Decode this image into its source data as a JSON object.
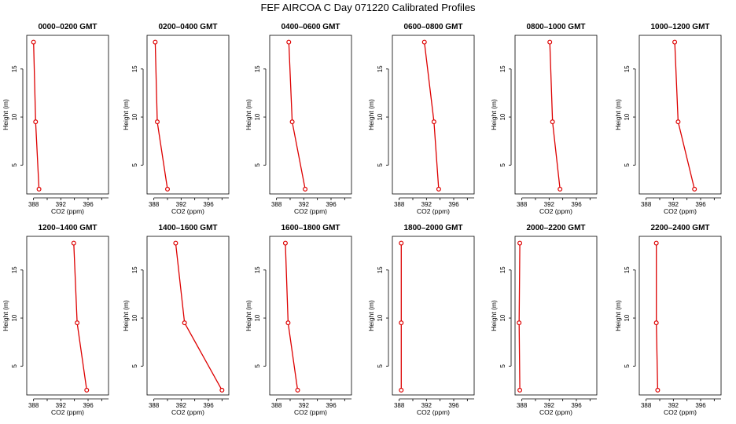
{
  "title": "FEF AIRCOA C  Day 071220  Calibrated Profiles",
  "chart_data": {
    "type": "line",
    "xlabel": "CO2 (ppm)",
    "ylabel": "Height (m)",
    "xlim": [
      387,
      399
    ],
    "ylim": [
      2,
      18.5
    ],
    "xticks": [
      388,
      392,
      396
    ],
    "yticks": [
      5,
      10,
      15
    ],
    "heights": [
      2.5,
      9.5,
      17.8
    ],
    "panels": [
      {
        "title": "0000–0200 GMT",
        "co2": [
          388.8,
          388.3,
          388.0
        ]
      },
      {
        "title": "0200–0400 GMT",
        "co2": [
          390.0,
          388.5,
          388.2
        ]
      },
      {
        "title": "0400–0600 GMT",
        "co2": [
          392.2,
          390.3,
          389.8
        ]
      },
      {
        "title": "0600–0800 GMT",
        "co2": [
          393.8,
          393.1,
          391.7
        ]
      },
      {
        "title": "0800–1000 GMT",
        "co2": [
          393.6,
          392.5,
          392.1
        ]
      },
      {
        "title": "1000–1200 GMT",
        "co2": [
          395.1,
          392.7,
          392.2
        ]
      },
      {
        "title": "1200–1400 GMT",
        "co2": [
          395.8,
          394.4,
          393.9
        ]
      },
      {
        "title": "1400–1600 GMT",
        "co2": [
          398.0,
          392.5,
          391.2
        ]
      },
      {
        "title": "1600–1800 GMT",
        "co2": [
          391.1,
          389.7,
          389.3
        ]
      },
      {
        "title": "1800–2000 GMT",
        "co2": [
          388.3,
          388.3,
          388.3
        ]
      },
      {
        "title": "2000–2200 GMT",
        "co2": [
          387.7,
          387.6,
          387.7
        ]
      },
      {
        "title": "2200–2400 GMT",
        "co2": [
          389.7,
          389.5,
          389.5
        ]
      }
    ]
  }
}
